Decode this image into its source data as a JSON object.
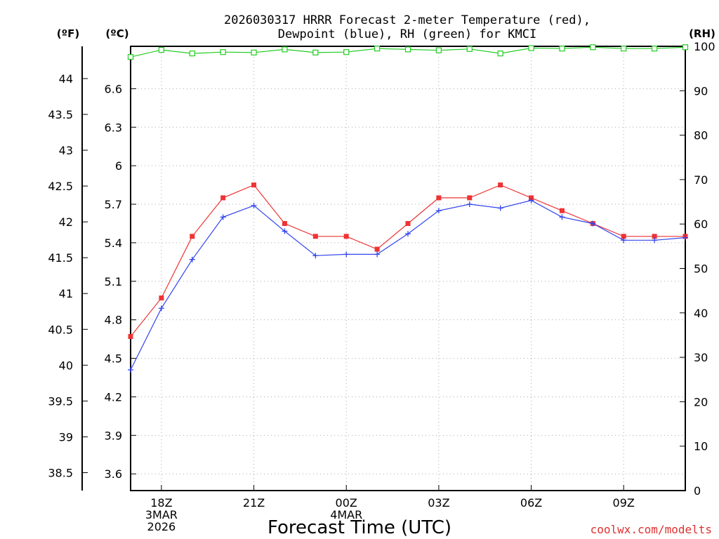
{
  "chart_data": {
    "type": "line",
    "title_lines": [
      "2026030317 HRRR Forecast 2-meter Temperature (red),",
      "Dewpoint (blue), RH (green) for KMCI"
    ],
    "xlabel": "Forecast Time (UTC)",
    "credit": "coolwx.com/modelts",
    "left_axis_f": {
      "label": "(ºF)",
      "ticks": [
        "38.5",
        "39",
        "39.5",
        "40",
        "40.5",
        "41",
        "41.5",
        "42",
        "42.5",
        "43",
        "43.5",
        "44"
      ],
      "range": [
        38.25,
        44.45
      ]
    },
    "left_axis_c": {
      "label": "(ºC)",
      "ticks": [
        "3.6",
        "3.9",
        "4.2",
        "4.5",
        "4.8",
        "5.1",
        "5.4",
        "5.7",
        "6",
        "6.3",
        "6.6"
      ],
      "range": [
        3.47,
        6.93
      ]
    },
    "right_axis_rh": {
      "label": "(RH)",
      "ticks": [
        "0",
        "10",
        "20",
        "30",
        "40",
        "50",
        "60",
        "70",
        "80",
        "90",
        "100"
      ],
      "range": [
        0,
        100
      ]
    },
    "x": {
      "hours": [
        17,
        18,
        19,
        20,
        21,
        22,
        23,
        24,
        25,
        26,
        27,
        28,
        29,
        30,
        31,
        32,
        33,
        34,
        35
      ],
      "range": [
        17,
        35
      ],
      "ticks": [
        {
          "hour": 18,
          "lines": [
            "18Z",
            "3MAR",
            "2026"
          ]
        },
        {
          "hour": 21,
          "lines": [
            "21Z"
          ]
        },
        {
          "hour": 24,
          "lines": [
            "00Z",
            "4MAR"
          ]
        },
        {
          "hour": 27,
          "lines": [
            "03Z"
          ]
        },
        {
          "hour": 30,
          "lines": [
            "06Z"
          ]
        },
        {
          "hour": 33,
          "lines": [
            "09Z"
          ]
        }
      ]
    },
    "series": [
      {
        "name": "Temperature",
        "unit": "C",
        "color": "#ee3333",
        "marker": "filled-square",
        "values": [
          4.67,
          4.97,
          5.45,
          5.75,
          5.85,
          5.55,
          5.45,
          5.45,
          5.35,
          5.55,
          5.75,
          5.75,
          5.85,
          5.75,
          5.65,
          5.55,
          5.45,
          5.45,
          5.45
        ]
      },
      {
        "name": "Dewpoint",
        "unit": "C",
        "color": "#3344ee",
        "marker": "plus",
        "values": [
          4.41,
          4.89,
          5.27,
          5.6,
          5.69,
          5.49,
          5.3,
          5.31,
          5.31,
          5.47,
          5.65,
          5.7,
          5.67,
          5.73,
          5.6,
          5.55,
          5.42,
          5.42,
          5.44
        ]
      },
      {
        "name": "RH",
        "unit": "%",
        "color": "#22cc22",
        "marker": "open-square",
        "values": [
          97.6,
          99.2,
          98.4,
          98.7,
          98.6,
          99.3,
          98.6,
          98.7,
          99.5,
          99.3,
          99.1,
          99.4,
          98.4,
          99.6,
          99.5,
          99.8,
          99.5,
          99.5,
          99.8
        ]
      }
    ]
  }
}
